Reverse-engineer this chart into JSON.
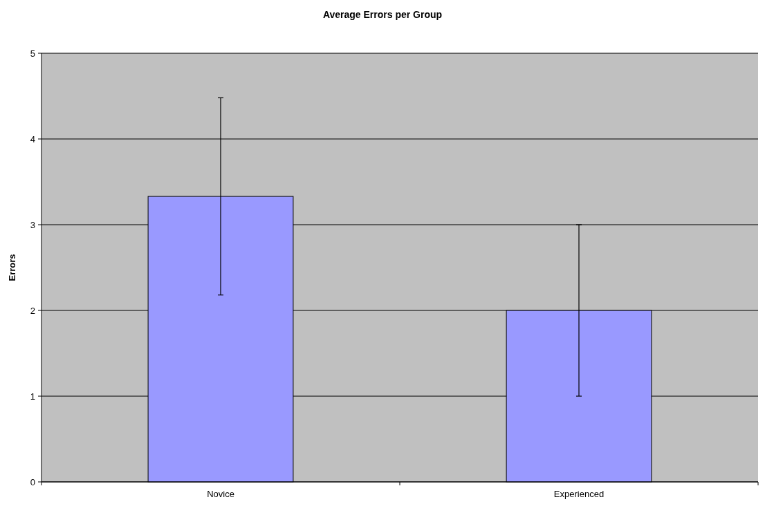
{
  "chart_data": {
    "type": "bar",
    "title": "Average Errors per Group",
    "ylabel": "Errors",
    "categories": [
      "Novice",
      "Experienced"
    ],
    "values": [
      3.33,
      2
    ],
    "errors": [
      1.15,
      1
    ],
    "color": "#9999ff",
    "ylim": [
      0,
      5
    ],
    "yticks": [
      0,
      1,
      2,
      3,
      4,
      5
    ],
    "grid": "y"
  }
}
